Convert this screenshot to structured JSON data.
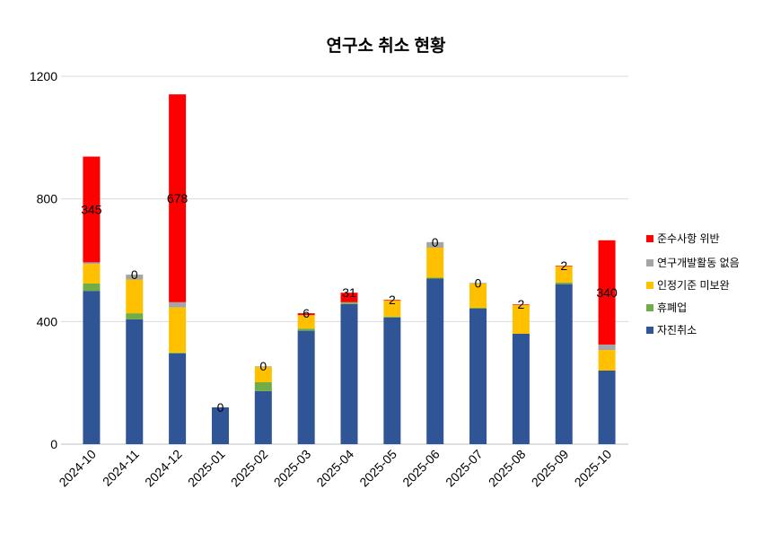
{
  "chart_data": {
    "type": "bar",
    "stacked": true,
    "title": "연구소 취소 현황",
    "xlabel": "",
    "ylabel": "",
    "ylim": [
      0,
      1200
    ],
    "yticks": [
      0,
      400,
      800,
      1200
    ],
    "grid": true,
    "legend_position": "right",
    "categories": [
      "2024-10",
      "2024-11",
      "2024-12",
      "2025-01",
      "2025-02",
      "2025-03",
      "2025-04",
      "2025-05",
      "2025-06",
      "2025-07",
      "2025-08",
      "2025-09",
      "2025-10"
    ],
    "series": [
      {
        "name": "자진취소",
        "color": "#2F5597",
        "values": [
          500,
          407,
          296,
          120,
          173,
          370,
          457,
          413,
          540,
          442,
          360,
          522,
          240
        ]
      },
      {
        "name": "휴폐업",
        "color": "#70AD47",
        "values": [
          24,
          20,
          3,
          0,
          29,
          7,
          5,
          3,
          3,
          3,
          0,
          5,
          0
        ]
      },
      {
        "name": "인정기준 미보완",
        "color": "#FFC000",
        "values": [
          64,
          110,
          147,
          0,
          50,
          44,
          0,
          53,
          98,
          79,
          94,
          53,
          67
        ]
      },
      {
        "name": "연구개발활동 없음",
        "color": "#A5A5A5",
        "values": [
          5,
          16,
          17,
          0,
          2,
          0,
          1,
          0,
          18,
          2,
          0,
          0,
          18
        ]
      },
      {
        "name": "준수사항 위반",
        "color": "#FF0000",
        "values": [
          345,
          0,
          678,
          0,
          0,
          6,
          31,
          2,
          0,
          0,
          2,
          2,
          340
        ]
      }
    ],
    "data_labels_series": "준수사항 위반",
    "legend_order": [
      "준수사항 위반",
      "연구개발활동 없음",
      "인정기준 미보완",
      "휴폐업",
      "자진취소"
    ]
  }
}
